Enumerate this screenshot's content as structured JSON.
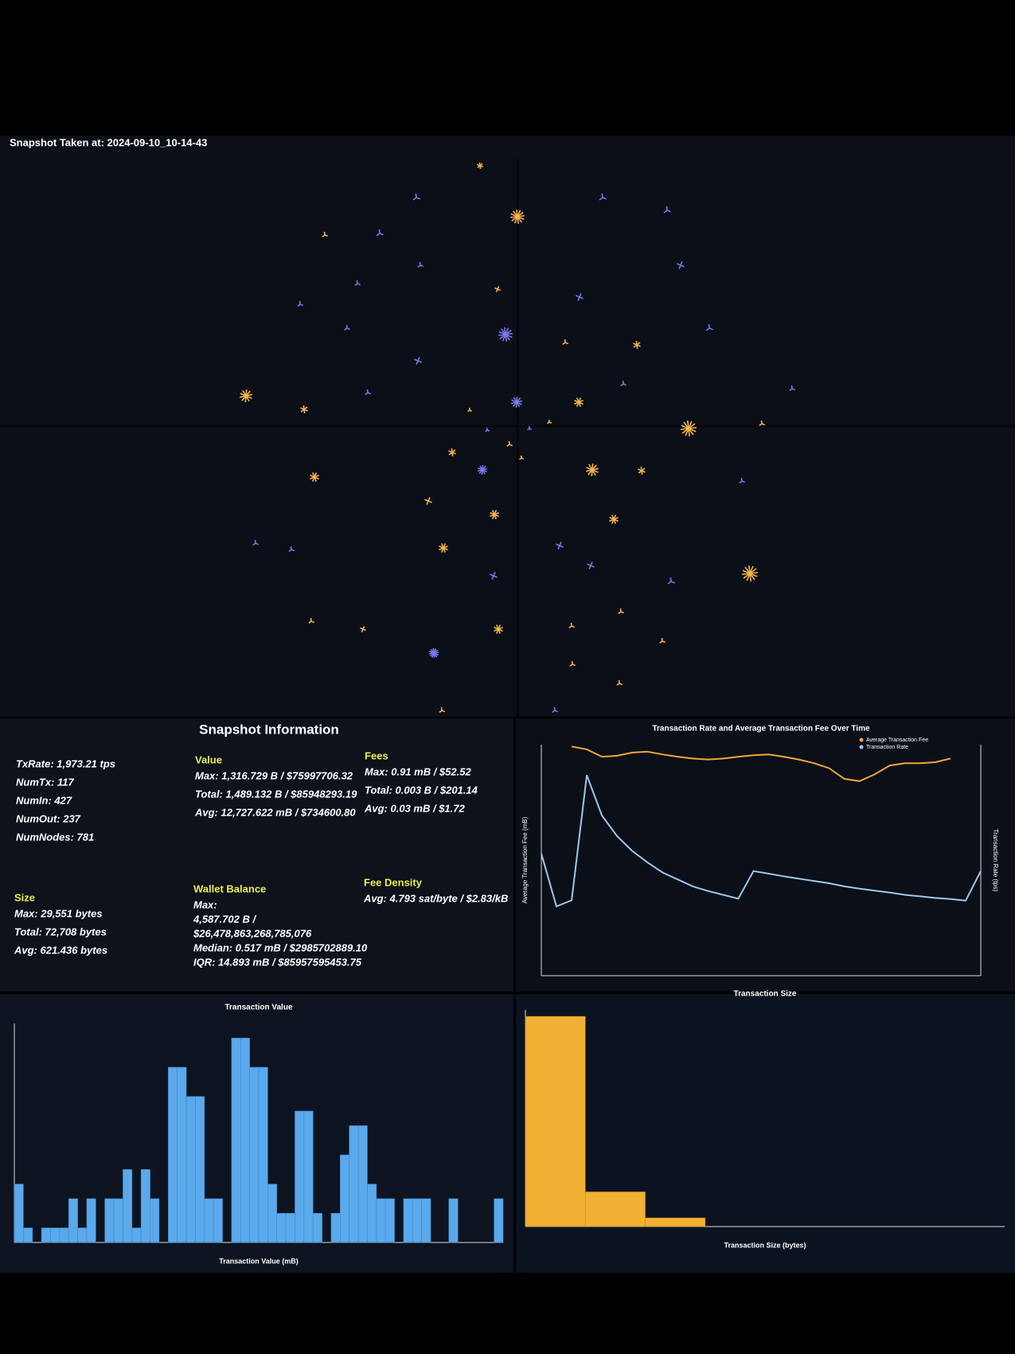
{
  "header": {
    "title": "Snapshot Taken at: 2024-09-10_10-14-43"
  },
  "info": {
    "title": "Snapshot Information",
    "stats": [
      "TxRate: 1,973.21 tps",
      "NumTx: 117",
      "NumIn: 427",
      "NumOut: 237",
      "NumNodes: 781"
    ],
    "value": {
      "heading": "Value",
      "lines": [
        "Max: 1,316.729 B / $75997706.32",
        "Total: 1,489.132 B / $85948293.19",
        "Avg: 12,727.622 mB / $734600.80"
      ]
    },
    "fees": {
      "heading": "Fees",
      "lines": [
        "Max: 0.91 mB / $52.52",
        "Total: 0.003 B / $201.14",
        "Avg: 0.03 mB / $1.72"
      ]
    },
    "size": {
      "heading": "Size",
      "lines": [
        "Max: 29,551 bytes",
        "Total: 72,708 bytes",
        "Avg: 621.436 bytes"
      ]
    },
    "wallet": {
      "heading": "Wallet Balance",
      "lines": [
        "Max:",
        "4,587.702 B /",
        "$26,478,863,268,785,076",
        "Median: 0.517 mB / $2985702889.10",
        "IQR: 14.893 mB / $85957595453.75"
      ]
    },
    "fee_density": {
      "heading": "Fee Density",
      "lines": [
        "Avg: 4.793 sat/byte / $2.83/kB"
      ]
    }
  },
  "chart_data": [
    {
      "type": "line",
      "title": "Transaction Rate and Average Transaction Fee Over Time",
      "y_label": "Average Transaction Fee (mB)",
      "y2_label": "Transaction Rate (tps)",
      "ylim": [
        0,
        0.05
      ],
      "y2lim": [
        0,
        3000
      ],
      "series": [
        {
          "name": "Average Transaction Fee",
          "color": "#f5a43a",
          "values": [
            null,
            null,
            0.0496,
            0.049,
            0.0474,
            0.0476,
            0.0483,
            0.0485,
            0.0479,
            0.0474,
            0.047,
            0.0468,
            0.047,
            0.0474,
            0.0477,
            0.0479,
            0.0474,
            0.0468,
            0.046,
            0.0449,
            0.0426,
            0.0421,
            0.0436,
            0.0455,
            0.046,
            0.046,
            0.0462,
            0.047,
            null,
            null
          ]
        },
        {
          "name": "Transaction Rate",
          "color": "#9cc8ee",
          "axis": "y2",
          "values": [
            1585,
            900,
            980,
            2604,
            2080,
            1811,
            1620,
            1472,
            1340,
            1250,
            1160,
            1100,
            1050,
            1000,
            1358,
            1325,
            1290,
            1260,
            1230,
            1200,
            1160,
            1130,
            1105,
            1080,
            1050,
            1030,
            1010,
            996,
            975,
            1358
          ]
        }
      ]
    },
    {
      "type": "bar",
      "title": "Transaction Value",
      "x_label": "Transaction Value (mB)",
      "color": "#5aa9ec",
      "ylim": [
        0,
        15
      ],
      "values": [
        4,
        1,
        0,
        1,
        1,
        1,
        3,
        1,
        3,
        0,
        3,
        3,
        5,
        1,
        5,
        3,
        0,
        12,
        12,
        10,
        10,
        3,
        3,
        0,
        14,
        14,
        12,
        12,
        4,
        2,
        2,
        9,
        9,
        2,
        0,
        2,
        6,
        8,
        8,
        4,
        3,
        3,
        0,
        3,
        3,
        3,
        0,
        0,
        3,
        0,
        0,
        0,
        0,
        3
      ]
    },
    {
      "type": "bar",
      "title": "Transaction Size",
      "x_label": "Transaction Size (bytes)",
      "color": "#f2b134",
      "ylim": [
        0,
        100
      ],
      "values": [
        97,
        16,
        4,
        0,
        0,
        0,
        0,
        0
      ]
    }
  ]
}
